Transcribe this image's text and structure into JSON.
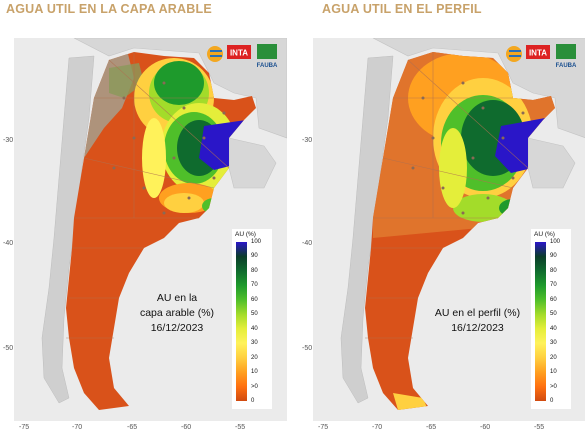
{
  "maps": [
    {
      "title": "AGUA UTIL EN LA CAPA ARABLE",
      "label_lines": [
        "AU en la",
        "capa arable (%)"
      ],
      "date": "16/12/2023"
    },
    {
      "title": "AGUA UTIL EN EL PERFIL",
      "label_lines": [
        "AU en el perfil (%)"
      ],
      "date": "16/12/2023"
    }
  ],
  "y_ticks": [
    "-30",
    "-40",
    "-50"
  ],
  "x_ticks": [
    "-75",
    "-70",
    "-65",
    "-60",
    "-55"
  ],
  "legend": {
    "title": "AU (%)",
    "labels": [
      "100",
      "90",
      "80",
      "70",
      "60",
      "50",
      "40",
      "30",
      "20",
      "10",
      ">0",
      "0"
    ],
    "colors": [
      "#2a16c8",
      "#0b3d2a",
      "#0f6b2e",
      "#1e9a2c",
      "#4fbf2a",
      "#a3dc2a",
      "#e4ee3a",
      "#fff25a",
      "#ffd040",
      "#ffa020",
      "#ff7010",
      "#d04a10"
    ]
  },
  "logos": {
    "inta": "INTA",
    "fauba": "FAUBA"
  },
  "colors": {
    "dry": "#d9521a",
    "terrain": "#a89a86",
    "background": "#ebebeb",
    "title": "#c8a26a"
  }
}
